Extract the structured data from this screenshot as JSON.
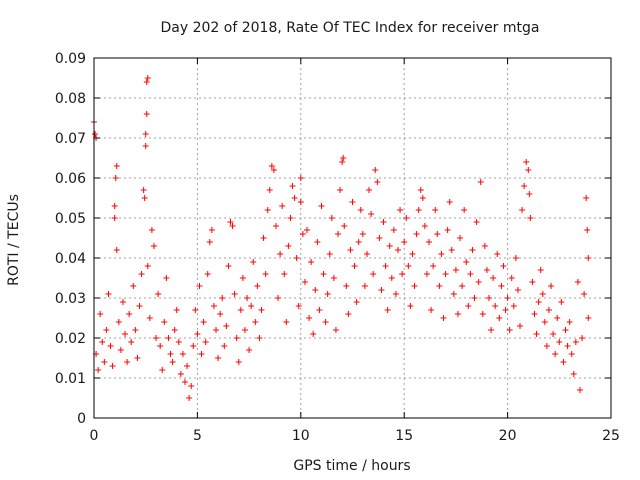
{
  "chart_data": {
    "type": "scatter",
    "title": "Day 202 of 2018, Rate Of TEC Index for receiver mtga",
    "xlabel": "GPS time / hours",
    "ylabel": "ROTI / TECUs",
    "xlim": [
      0,
      25
    ],
    "ylim": [
      0,
      0.09
    ],
    "xticks": [
      0,
      5,
      10,
      15,
      20,
      25
    ],
    "xtick_labels": [
      "0",
      "5",
      "10",
      "15",
      "20",
      "25"
    ],
    "yticks": [
      0,
      0.01,
      0.02,
      0.03,
      0.04,
      0.05,
      0.06,
      0.07,
      0.08,
      0.09
    ],
    "ytick_labels": [
      "0",
      "0.01",
      "0.02",
      "0.03",
      "0.04",
      "0.05",
      "0.06",
      "0.07",
      "0.08",
      "0.09"
    ],
    "grid": true,
    "marker": "+",
    "series": [
      {
        "name": "mtga",
        "color": "#ff0000",
        "points": [
          [
            0.0,
            0.074
          ],
          [
            0.05,
            0.071
          ],
          [
            0.1,
            0.07
          ],
          [
            0.1,
            0.016
          ],
          [
            0.2,
            0.012
          ],
          [
            0.3,
            0.026
          ],
          [
            0.4,
            0.019
          ],
          [
            0.5,
            0.014
          ],
          [
            0.6,
            0.022
          ],
          [
            0.7,
            0.031
          ],
          [
            0.8,
            0.018
          ],
          [
            0.9,
            0.013
          ],
          [
            1.0,
            0.05
          ],
          [
            1.0,
            0.053
          ],
          [
            1.05,
            0.06
          ],
          [
            1.1,
            0.063
          ],
          [
            1.1,
            0.042
          ],
          [
            1.2,
            0.024
          ],
          [
            1.3,
            0.017
          ],
          [
            1.4,
            0.029
          ],
          [
            1.5,
            0.021
          ],
          [
            1.6,
            0.014
          ],
          [
            1.7,
            0.026
          ],
          [
            1.8,
            0.019
          ],
          [
            1.9,
            0.033
          ],
          [
            2.0,
            0.022
          ],
          [
            2.1,
            0.015
          ],
          [
            2.2,
            0.028
          ],
          [
            2.3,
            0.036
          ],
          [
            2.4,
            0.057
          ],
          [
            2.45,
            0.055
          ],
          [
            2.5,
            0.068
          ],
          [
            2.5,
            0.071
          ],
          [
            2.55,
            0.076
          ],
          [
            2.55,
            0.084
          ],
          [
            2.6,
            0.085
          ],
          [
            2.6,
            0.038
          ],
          [
            2.7,
            0.025
          ],
          [
            2.8,
            0.047
          ],
          [
            2.9,
            0.043
          ],
          [
            3.0,
            0.02
          ],
          [
            3.1,
            0.031
          ],
          [
            3.2,
            0.018
          ],
          [
            3.3,
            0.012
          ],
          [
            3.4,
            0.024
          ],
          [
            3.5,
            0.035
          ],
          [
            3.6,
            0.02
          ],
          [
            3.7,
            0.016
          ],
          [
            3.8,
            0.014
          ],
          [
            3.9,
            0.022
          ],
          [
            4.0,
            0.027
          ],
          [
            4.1,
            0.019
          ],
          [
            4.2,
            0.011
          ],
          [
            4.3,
            0.016
          ],
          [
            4.4,
            0.009
          ],
          [
            4.5,
            0.013
          ],
          [
            4.6,
            0.005
          ],
          [
            4.7,
            0.008
          ],
          [
            4.8,
            0.018
          ],
          [
            4.9,
            0.027
          ],
          [
            5.0,
            0.021
          ],
          [
            5.1,
            0.033
          ],
          [
            5.2,
            0.016
          ],
          [
            5.3,
            0.024
          ],
          [
            5.4,
            0.019
          ],
          [
            5.5,
            0.036
          ],
          [
            5.6,
            0.044
          ],
          [
            5.7,
            0.047
          ],
          [
            5.8,
            0.028
          ],
          [
            5.9,
            0.022
          ],
          [
            6.0,
            0.015
          ],
          [
            6.1,
            0.026
          ],
          [
            6.2,
            0.03
          ],
          [
            6.3,
            0.018
          ],
          [
            6.4,
            0.023
          ],
          [
            6.5,
            0.038
          ],
          [
            6.6,
            0.049
          ],
          [
            6.7,
            0.048
          ],
          [
            6.8,
            0.031
          ],
          [
            6.9,
            0.02
          ],
          [
            7.0,
            0.014
          ],
          [
            7.1,
            0.027
          ],
          [
            7.2,
            0.035
          ],
          [
            7.3,
            0.022
          ],
          [
            7.4,
            0.03
          ],
          [
            7.5,
            0.017
          ],
          [
            7.6,
            0.028
          ],
          [
            7.7,
            0.039
          ],
          [
            7.8,
            0.024
          ],
          [
            7.9,
            0.033
          ],
          [
            8.0,
            0.02
          ],
          [
            8.1,
            0.027
          ],
          [
            8.2,
            0.045
          ],
          [
            8.3,
            0.036
          ],
          [
            8.4,
            0.052
          ],
          [
            8.5,
            0.057
          ],
          [
            8.6,
            0.063
          ],
          [
            8.7,
            0.062
          ],
          [
            8.8,
            0.048
          ],
          [
            8.9,
            0.03
          ],
          [
            9.0,
            0.041
          ],
          [
            9.1,
            0.053
          ],
          [
            9.2,
            0.036
          ],
          [
            9.3,
            0.024
          ],
          [
            9.4,
            0.043
          ],
          [
            9.5,
            0.05
          ],
          [
            9.6,
            0.058
          ],
          [
            9.7,
            0.055
          ],
          [
            9.8,
            0.04
          ],
          [
            9.9,
            0.028
          ],
          [
            10.0,
            0.06
          ],
          [
            10.0,
            0.054
          ],
          [
            10.1,
            0.046
          ],
          [
            10.2,
            0.034
          ],
          [
            10.3,
            0.047
          ],
          [
            10.4,
            0.025
          ],
          [
            10.5,
            0.039
          ],
          [
            10.6,
            0.021
          ],
          [
            10.7,
            0.032
          ],
          [
            10.8,
            0.044
          ],
          [
            10.9,
            0.027
          ],
          [
            11.0,
            0.053
          ],
          [
            11.1,
            0.036
          ],
          [
            11.2,
            0.024
          ],
          [
            11.3,
            0.031
          ],
          [
            11.4,
            0.041
          ],
          [
            11.5,
            0.05
          ],
          [
            11.6,
            0.035
          ],
          [
            11.7,
            0.022
          ],
          [
            11.8,
            0.046
          ],
          [
            11.9,
            0.057
          ],
          [
            12.0,
            0.064
          ],
          [
            12.05,
            0.065
          ],
          [
            12.1,
            0.048
          ],
          [
            12.2,
            0.033
          ],
          [
            12.3,
            0.026
          ],
          [
            12.4,
            0.042
          ],
          [
            12.5,
            0.054
          ],
          [
            12.6,
            0.038
          ],
          [
            12.7,
            0.029
          ],
          [
            12.8,
            0.044
          ],
          [
            12.9,
            0.052
          ],
          [
            13.0,
            0.046
          ],
          [
            13.1,
            0.033
          ],
          [
            13.2,
            0.041
          ],
          [
            13.3,
            0.057
          ],
          [
            13.4,
            0.051
          ],
          [
            13.5,
            0.036
          ],
          [
            13.6,
            0.062
          ],
          [
            13.7,
            0.059
          ],
          [
            13.8,
            0.045
          ],
          [
            13.9,
            0.032
          ],
          [
            14.0,
            0.049
          ],
          [
            14.1,
            0.038
          ],
          [
            14.2,
            0.027
          ],
          [
            14.3,
            0.043
          ],
          [
            14.4,
            0.035
          ],
          [
            14.5,
            0.047
          ],
          [
            14.6,
            0.031
          ],
          [
            14.7,
            0.042
          ],
          [
            14.8,
            0.052
          ],
          [
            14.9,
            0.036
          ],
          [
            15.0,
            0.044
          ],
          [
            15.1,
            0.05
          ],
          [
            15.2,
            0.038
          ],
          [
            15.3,
            0.028
          ],
          [
            15.4,
            0.041
          ],
          [
            15.5,
            0.033
          ],
          [
            15.6,
            0.046
          ],
          [
            15.7,
            0.052
          ],
          [
            15.8,
            0.057
          ],
          [
            15.9,
            0.055
          ],
          [
            16.0,
            0.048
          ],
          [
            16.1,
            0.036
          ],
          [
            16.2,
            0.044
          ],
          [
            16.3,
            0.027
          ],
          [
            16.4,
            0.038
          ],
          [
            16.5,
            0.052
          ],
          [
            16.6,
            0.046
          ],
          [
            16.7,
            0.033
          ],
          [
            16.8,
            0.041
          ],
          [
            16.9,
            0.025
          ],
          [
            17.0,
            0.036
          ],
          [
            17.1,
            0.047
          ],
          [
            17.2,
            0.054
          ],
          [
            17.3,
            0.042
          ],
          [
            17.4,
            0.031
          ],
          [
            17.5,
            0.037
          ],
          [
            17.6,
            0.026
          ],
          [
            17.7,
            0.045
          ],
          [
            17.8,
            0.033
          ],
          [
            17.9,
            0.052
          ],
          [
            18.0,
            0.039
          ],
          [
            18.1,
            0.028
          ],
          [
            18.2,
            0.036
          ],
          [
            18.3,
            0.042
          ],
          [
            18.4,
            0.03
          ],
          [
            18.5,
            0.049
          ],
          [
            18.6,
            0.034
          ],
          [
            18.7,
            0.059
          ],
          [
            18.8,
            0.026
          ],
          [
            18.9,
            0.043
          ],
          [
            19.0,
            0.037
          ],
          [
            19.1,
            0.03
          ],
          [
            19.2,
            0.022
          ],
          [
            19.3,
            0.035
          ],
          [
            19.4,
            0.028
          ],
          [
            19.5,
            0.041
          ],
          [
            19.6,
            0.025
          ],
          [
            19.7,
            0.033
          ],
          [
            19.8,
            0.038
          ],
          [
            19.9,
            0.027
          ],
          [
            20.0,
            0.03
          ],
          [
            20.1,
            0.022
          ],
          [
            20.2,
            0.035
          ],
          [
            20.3,
            0.028
          ],
          [
            20.4,
            0.04
          ],
          [
            20.5,
            0.032
          ],
          [
            20.6,
            0.023
          ],
          [
            20.7,
            0.052
          ],
          [
            20.8,
            0.058
          ],
          [
            20.9,
            0.064
          ],
          [
            21.0,
            0.062
          ],
          [
            21.05,
            0.056
          ],
          [
            21.1,
            0.05
          ],
          [
            21.2,
            0.034
          ],
          [
            21.3,
            0.026
          ],
          [
            21.4,
            0.021
          ],
          [
            21.5,
            0.029
          ],
          [
            21.6,
            0.037
          ],
          [
            21.7,
            0.031
          ],
          [
            21.8,
            0.024
          ],
          [
            21.9,
            0.018
          ],
          [
            22.0,
            0.027
          ],
          [
            22.1,
            0.033
          ],
          [
            22.2,
            0.021
          ],
          [
            22.3,
            0.016
          ],
          [
            22.4,
            0.025
          ],
          [
            22.5,
            0.019
          ],
          [
            22.6,
            0.029
          ],
          [
            22.7,
            0.014
          ],
          [
            22.8,
            0.022
          ],
          [
            22.9,
            0.018
          ],
          [
            23.0,
            0.024
          ],
          [
            23.1,
            0.016
          ],
          [
            23.2,
            0.011
          ],
          [
            23.3,
            0.019
          ],
          [
            23.4,
            0.034
          ],
          [
            23.5,
            0.007
          ],
          [
            23.6,
            0.02
          ],
          [
            23.7,
            0.031
          ],
          [
            23.8,
            0.055
          ],
          [
            23.85,
            0.047
          ],
          [
            23.9,
            0.04
          ],
          [
            23.9,
            0.025
          ]
        ]
      }
    ]
  }
}
